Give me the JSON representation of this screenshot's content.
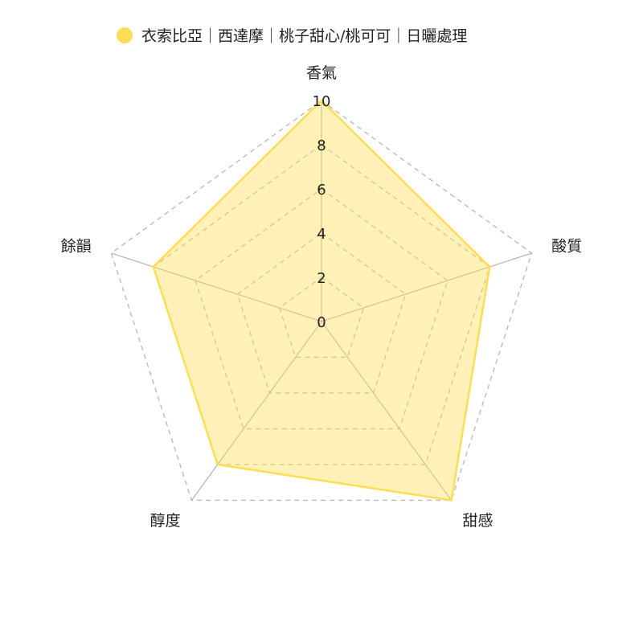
{
  "chart_data": {
    "type": "radar",
    "title": "",
    "axes": [
      "香氣",
      "酸質",
      "甜感",
      "醇度",
      "餘韻"
    ],
    "series": [
      {
        "name": "衣索比亞｜西達摩｜桃子甜心/桃可可｜日曬處理",
        "values": [
          10,
          8,
          10,
          8,
          8
        ],
        "color": "#FFDD55",
        "fill": "#FFDD55"
      }
    ],
    "range": [
      0,
      10
    ],
    "ticks": [
      0,
      2,
      4,
      6,
      8,
      10
    ],
    "grid": true,
    "grid_style": "dashed",
    "legend_position": "top-center"
  }
}
